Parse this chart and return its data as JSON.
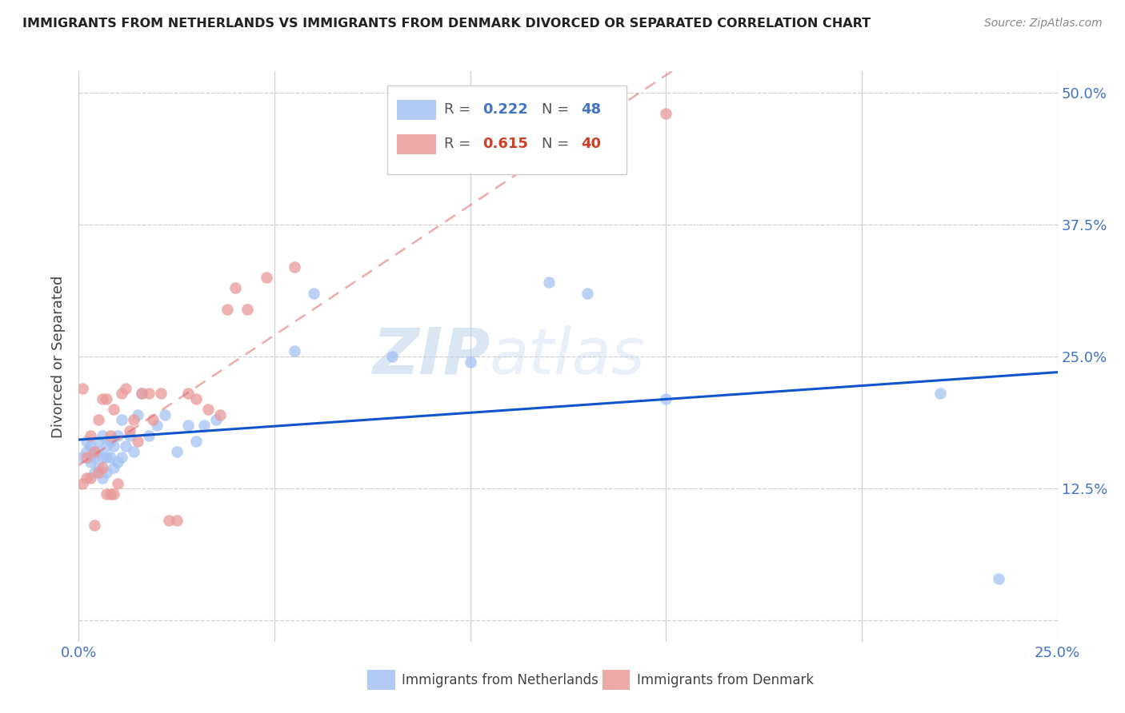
{
  "title": "IMMIGRANTS FROM NETHERLANDS VS IMMIGRANTS FROM DENMARK DIVORCED OR SEPARATED CORRELATION CHART",
  "source": "Source: ZipAtlas.com",
  "ylabel": "Divorced or Separated",
  "r_netherlands": 0.222,
  "n_netherlands": 48,
  "r_denmark": 0.615,
  "n_denmark": 40,
  "netherlands_color": "#a4c2f4",
  "denmark_color": "#ea9999",
  "netherlands_line_color": "#1155cc",
  "denmark_line_color": "#e06666",
  "watermark_zip": "ZIP",
  "watermark_atlas": "atlas",
  "xlim": [
    0.0,
    0.25
  ],
  "ylim": [
    -0.02,
    0.52
  ],
  "xtick_positions": [
    0.0,
    0.05,
    0.1,
    0.15,
    0.2,
    0.25
  ],
  "xtick_labels": [
    "0.0%",
    "",
    "",
    "",
    "",
    "25.0%"
  ],
  "ytick_vals": [
    0.0,
    0.125,
    0.25,
    0.375,
    0.5
  ],
  "ytick_labels": [
    "",
    "12.5%",
    "25.0%",
    "37.5%",
    "50.0%"
  ],
  "netherlands_x": [
    0.001,
    0.002,
    0.002,
    0.003,
    0.003,
    0.003,
    0.004,
    0.004,
    0.004,
    0.005,
    0.005,
    0.005,
    0.006,
    0.006,
    0.006,
    0.007,
    0.007,
    0.007,
    0.008,
    0.008,
    0.009,
    0.009,
    0.01,
    0.01,
    0.011,
    0.011,
    0.012,
    0.013,
    0.014,
    0.015,
    0.016,
    0.018,
    0.02,
    0.022,
    0.025,
    0.028,
    0.03,
    0.032,
    0.035,
    0.055,
    0.06,
    0.08,
    0.1,
    0.12,
    0.13,
    0.15,
    0.22,
    0.235
  ],
  "netherlands_y": [
    0.155,
    0.16,
    0.17,
    0.15,
    0.155,
    0.165,
    0.14,
    0.155,
    0.16,
    0.145,
    0.16,
    0.17,
    0.135,
    0.155,
    0.175,
    0.14,
    0.155,
    0.165,
    0.155,
    0.17,
    0.145,
    0.165,
    0.15,
    0.175,
    0.155,
    0.19,
    0.165,
    0.175,
    0.16,
    0.195,
    0.215,
    0.175,
    0.185,
    0.195,
    0.16,
    0.185,
    0.17,
    0.185,
    0.19,
    0.255,
    0.31,
    0.25,
    0.245,
    0.32,
    0.31,
    0.21,
    0.215,
    0.04
  ],
  "denmark_x": [
    0.001,
    0.001,
    0.002,
    0.002,
    0.003,
    0.003,
    0.004,
    0.004,
    0.005,
    0.005,
    0.006,
    0.006,
    0.007,
    0.007,
    0.008,
    0.008,
    0.009,
    0.009,
    0.01,
    0.011,
    0.012,
    0.013,
    0.014,
    0.015,
    0.016,
    0.018,
    0.019,
    0.021,
    0.023,
    0.025,
    0.028,
    0.03,
    0.033,
    0.036,
    0.038,
    0.04,
    0.043,
    0.048,
    0.055,
    0.15
  ],
  "denmark_y": [
    0.13,
    0.22,
    0.135,
    0.155,
    0.135,
    0.175,
    0.09,
    0.16,
    0.14,
    0.19,
    0.145,
    0.21,
    0.12,
    0.21,
    0.12,
    0.175,
    0.12,
    0.2,
    0.13,
    0.215,
    0.22,
    0.18,
    0.19,
    0.17,
    0.215,
    0.215,
    0.19,
    0.215,
    0.095,
    0.095,
    0.215,
    0.21,
    0.2,
    0.195,
    0.295,
    0.315,
    0.295,
    0.325,
    0.335,
    0.48
  ]
}
